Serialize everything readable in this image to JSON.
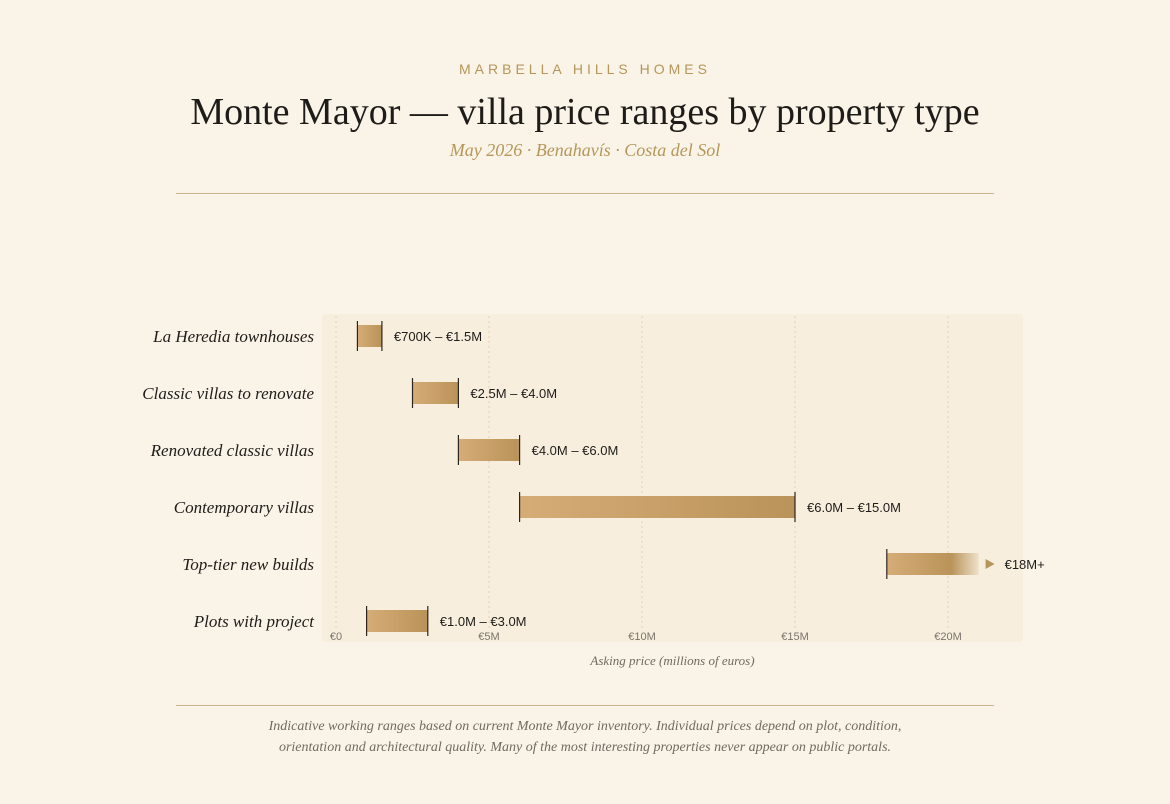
{
  "header": {
    "brand": "MARBELLA HILLS HOMES",
    "title": "Monte Mayor — villa price ranges by property type",
    "subtitle": "May 2026 · Benahavís · Costa del Sol"
  },
  "footnote": {
    "line1": "Indicative working ranges based on current Monte Mayor inventory. Individual prices depend on plot, condition,",
    "line2": "orientation and architectural quality. Many of the most interesting properties never appear on public portals."
  },
  "colors": {
    "background": "#faf3e7",
    "plot_background": "#f8eedd",
    "bar_start": "#d6ac77",
    "bar_end": "#b99359",
    "accent": "#b5975a",
    "cap": "#2b2520"
  },
  "chart_data": {
    "type": "range-bar",
    "title": "",
    "xlabel": "Asking price (millions of euros)",
    "ylabel": "",
    "unit": "millions of euros",
    "xlim": [
      0,
      22
    ],
    "xticks": [
      {
        "value": 0,
        "label": "€0"
      },
      {
        "value": 5,
        "label": "€5M"
      },
      {
        "value": 10,
        "label": "€10M"
      },
      {
        "value": 15,
        "label": "€15M"
      },
      {
        "value": 20,
        "label": "€20M"
      }
    ],
    "grid": true,
    "categories": [
      "La Heredia townhouses",
      "Classic villas to renovate",
      "Renovated classic villas",
      "Contemporary villas",
      "Top-tier new builds",
      "Plots with project"
    ],
    "ranges": [
      {
        "category": "La Heredia townhouses",
        "min": 0.7,
        "max": 1.5,
        "label": "€700K – €1.5M",
        "open_ended": false
      },
      {
        "category": "Classic villas to renovate",
        "min": 2.5,
        "max": 4.0,
        "label": "€2.5M – €4.0M",
        "open_ended": false
      },
      {
        "category": "Renovated classic villas",
        "min": 4.0,
        "max": 6.0,
        "label": "€4.0M – €6.0M",
        "open_ended": false
      },
      {
        "category": "Contemporary villas",
        "min": 6.0,
        "max": 15.0,
        "label": "€6.0M – €15.0M",
        "open_ended": false
      },
      {
        "category": "Top-tier new builds",
        "min": 18.0,
        "max": 21.0,
        "label": "€18M+",
        "open_ended": true
      },
      {
        "category": "Plots with project",
        "min": 1.0,
        "max": 3.0,
        "label": "€1.0M – €3.0M",
        "open_ended": false
      }
    ]
  }
}
